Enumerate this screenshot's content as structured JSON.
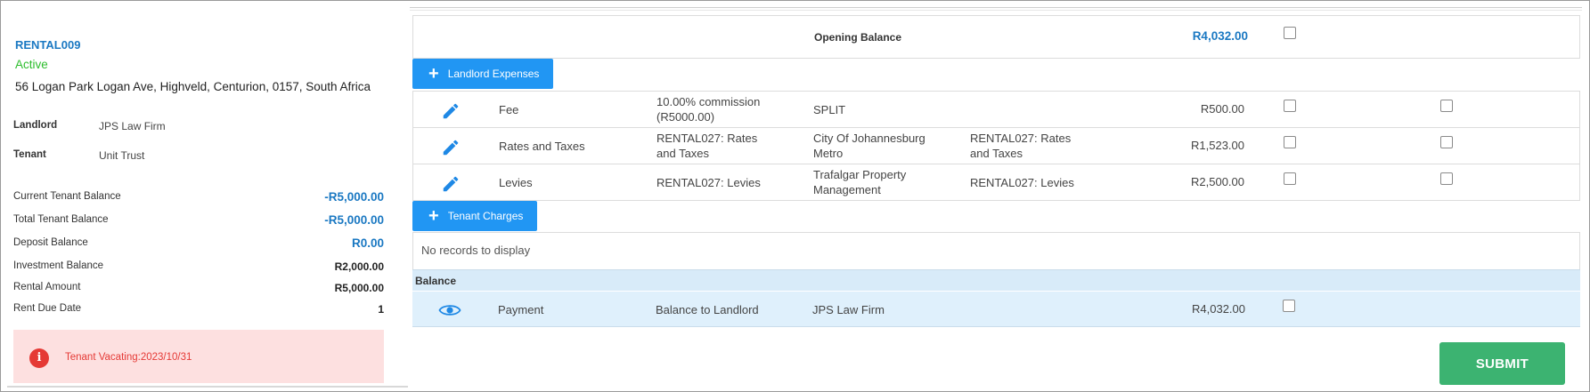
{
  "property": {
    "code": "RENTAL009",
    "status": "Active",
    "address": "56 Logan Park Logan Ave, Highveld, Centurion, 0157, South Africa"
  },
  "details": {
    "landlord_label": "Landlord",
    "landlord_value": "JPS Law Firm",
    "tenant_label": "Tenant",
    "tenant_value": "Unit Trust"
  },
  "balances": [
    {
      "label": "Current Tenant Balance",
      "value": "-R5,000.00"
    },
    {
      "label": "Total Tenant Balance",
      "value": "-R5,000.00"
    },
    {
      "label": "Deposit Balance",
      "value": "R0.00"
    },
    {
      "label": "Investment Balance",
      "value": "R2,000.00"
    },
    {
      "label": "Rental Amount",
      "value": "R5,000.00"
    },
    {
      "label": "Rent Due Date",
      "value": "1"
    }
  ],
  "alert": {
    "icon": "info-icon",
    "text": "Tenant Vacating:2023/10/31"
  },
  "opening": {
    "label": "Opening Balance",
    "amount": "R4,032.00"
  },
  "landlord_expenses": {
    "button_label": "Landlord Expenses",
    "rows": [
      {
        "type": "Fee",
        "description_1": "10.00% commission",
        "description_2": "(R5000.00)",
        "payee_1": "SPLIT",
        "payee_2": "",
        "reference_1": "",
        "reference_2": "",
        "amount": "R500.00"
      },
      {
        "type": "Rates and Taxes",
        "description_1": "RENTAL027: Rates",
        "description_2": "and Taxes",
        "payee_1": "City Of Johannesburg",
        "payee_2": "Metro",
        "reference_1": "RENTAL027: Rates",
        "reference_2": "and Taxes",
        "amount": "R1,523.00"
      },
      {
        "type": "Levies",
        "description_1": "RENTAL027: Levies",
        "description_2": "",
        "payee_1": "Trafalgar Property",
        "payee_2": "Management",
        "reference_1": "RENTAL027: Levies",
        "reference_2": "",
        "amount": "R2,500.00"
      }
    ]
  },
  "tenant_charges": {
    "button_label": "Tenant Charges",
    "empty_text": "No records to display"
  },
  "balance_section": {
    "header": "Balance",
    "payment": {
      "type": "Payment",
      "description": "Balance to Landlord",
      "payee": "JPS Law Firm",
      "amount": "R4,032.00"
    }
  },
  "submit_label": "SUBMIT",
  "colors": {
    "accent": "#2196f3",
    "link_blue": "#1a78c2",
    "active_green": "#2dbd2d",
    "submit_green": "#3cb371",
    "alert_bg": "#fde0e0",
    "alert_red": "#e53935"
  }
}
